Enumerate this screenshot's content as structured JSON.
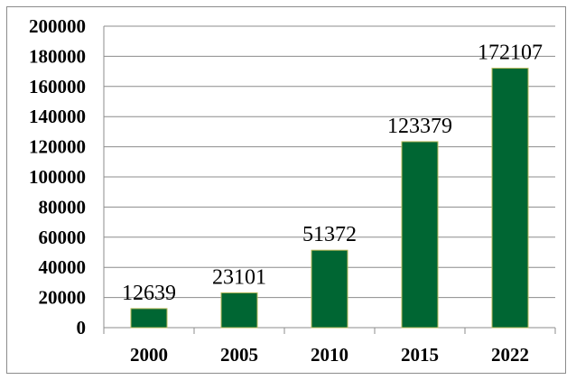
{
  "chart_data": {
    "type": "bar",
    "title": "",
    "xlabel": "",
    "ylabel": "",
    "categories": [
      "2000",
      "2005",
      "2010",
      "2015",
      "2022"
    ],
    "values": [
      12639,
      23101,
      51372,
      123379,
      172107
    ],
    "ylim": [
      0,
      200000
    ],
    "yticks": [
      0,
      20000,
      40000,
      60000,
      80000,
      100000,
      120000,
      140000,
      160000,
      180000,
      200000
    ],
    "grid": true,
    "legend": "none",
    "data_labels": true,
    "colors": {
      "bar_fill": "#006633",
      "bar_edge": "#b8b85a",
      "grid": "#8c8c8c",
      "frame": "#8c8c8c"
    }
  }
}
